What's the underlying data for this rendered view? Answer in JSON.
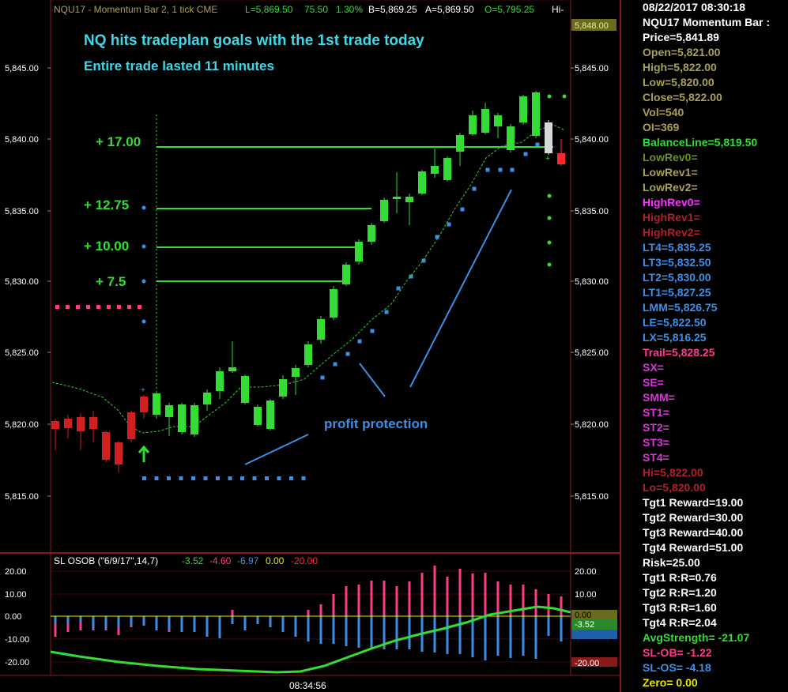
{
  "header": {
    "symbol": "NQU17 - Momentum Bar 2, 1 tick  CME",
    "last": "L=5,869.50",
    "change": "75.50",
    "pct": "1.30%",
    "bid": "B=5,869.25",
    "ask": "A=5,869.50",
    "open": "O=5,795.25",
    "hi": "Hi-"
  },
  "annotations": {
    "headline": "NQ hits tradeplan goals with the 1st trade today",
    "subline": "Entire trade lasted 11 minutes",
    "profit": "profit protection",
    "targets": [
      "+ 17.00",
      "+ 12.75",
      "+ 10.00",
      "+ 7.5"
    ]
  },
  "price_axis": {
    "labels": [
      "5,845.00",
      "5,840.00",
      "5,835.00",
      "5,830.00",
      "5,825.00",
      "5,820.00",
      "5,815.00"
    ],
    "highlight": "5,848.00"
  },
  "indicator": {
    "name": "SL  OSOB (\"6/9/17\",14,7)",
    "values": [
      "-3.52",
      "-4.60",
      "-6.97",
      "0.00",
      "-20.00"
    ],
    "colors": [
      "#33dd33",
      "#ff3b8b",
      "#3a8fe8",
      "#e8e800",
      "#ff2b2b"
    ],
    "axis_labels": [
      "20.00",
      "10.00",
      "0.00",
      "-10.00",
      "-20.00"
    ],
    "right_labels": [
      "20.00",
      "10.00",
      "0.00",
      "-3.52",
      "-20.00"
    ]
  },
  "time_label": "08:34:56",
  "sidebar": [
    {
      "text": "08/22/2017 08:30:18",
      "color": "#ffffff"
    },
    {
      "text": "NQU17 Momentum Bar :",
      "color": "#ffffff"
    },
    {
      "text": "Price=5,841.89",
      "color": "#ffffff"
    },
    {
      "text": "Open=5,821.00",
      "color": "#a8a058"
    },
    {
      "text": "High=5,822.00",
      "color": "#a8a058"
    },
    {
      "text": "Low=5,820.00",
      "color": "#a8a058"
    },
    {
      "text": "Close=5,822.00",
      "color": "#a8a058"
    },
    {
      "text": "Vol=540",
      "color": "#a8a058"
    },
    {
      "text": "OI=369",
      "color": "#a8a058"
    },
    {
      "text": "BalanceLine=5,819.50",
      "color": "#33dd33"
    },
    {
      "text": "LowRev0=",
      "color": "#6b8f2a"
    },
    {
      "text": "LowRev1=",
      "color": "#a8a058"
    },
    {
      "text": "LowRev2=",
      "color": "#a8a058"
    },
    {
      "text": "HighRev0=",
      "color": "#ff33ff"
    },
    {
      "text": "HighRev1=",
      "color": "#b0202a"
    },
    {
      "text": "HighRev2=",
      "color": "#b0202a"
    },
    {
      "text": "LT4=5,835.25",
      "color": "#3a8fe8"
    },
    {
      "text": "LT3=5,832.50",
      "color": "#3a8fe8"
    },
    {
      "text": "LT2=5,830.00",
      "color": "#3a8fe8"
    },
    {
      "text": "LT1=5,827.25",
      "color": "#3a8fe8"
    },
    {
      "text": "LMM=5,826.75",
      "color": "#3a8fe8"
    },
    {
      "text": "LE=5,822.50",
      "color": "#3a8fe8"
    },
    {
      "text": "LX=5,816.25",
      "color": "#3a8fe8"
    },
    {
      "text": "Trail=5,828.25",
      "color": "#ff3b8b"
    },
    {
      "text": "SX=",
      "color": "#dd33dd"
    },
    {
      "text": "SE=",
      "color": "#dd33dd"
    },
    {
      "text": "SMM=",
      "color": "#dd33dd"
    },
    {
      "text": "ST1=",
      "color": "#dd33dd"
    },
    {
      "text": "ST2=",
      "color": "#dd33dd"
    },
    {
      "text": "ST3=",
      "color": "#dd33dd"
    },
    {
      "text": "ST4=",
      "color": "#dd33dd"
    },
    {
      "text": "Hi=5,822.00",
      "color": "#b0202a"
    },
    {
      "text": "Lo=5,820.00",
      "color": "#b0202a"
    },
    {
      "text": "Tgt1 Reward=19.00",
      "color": "#ffffff"
    },
    {
      "text": "Tgt2 Reward=30.00",
      "color": "#ffffff"
    },
    {
      "text": "Tgt3 Reward=40.00",
      "color": "#ffffff"
    },
    {
      "text": "Tgt4 Reward=51.00",
      "color": "#ffffff"
    },
    {
      "text": "Risk=25.00",
      "color": "#ffffff"
    },
    {
      "text": "Tgt1 R:R=0.76",
      "color": "#ffffff"
    },
    {
      "text": "Tgt2 R:R=1.20",
      "color": "#ffffff"
    },
    {
      "text": "Tgt3 R:R=1.60",
      "color": "#ffffff"
    },
    {
      "text": "Tgt4 R:R=2.04",
      "color": "#ffffff"
    },
    {
      "text": "AvgStrength= -21.07",
      "color": "#33dd33"
    },
    {
      "text": "SL-OB= -1.22",
      "color": "#ff3b8b"
    },
    {
      "text": "SL-OS= -4.18",
      "color": "#3a8fe8"
    },
    {
      "text": "Zero= 0.00",
      "color": "#e8e800"
    }
  ]
}
